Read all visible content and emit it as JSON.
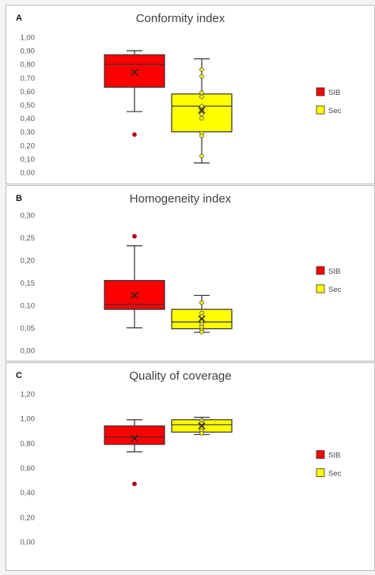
{
  "colors": {
    "SIB": "#ff0000",
    "Sec": "#ffff00",
    "outline": "#333333"
  },
  "chart_data": [
    {
      "type": "box",
      "panel_label": "A",
      "title": "Conformity index",
      "ylim": [
        0,
        1
      ],
      "yticks": [
        "0,00",
        "0,10",
        "0,20",
        "0,30",
        "0,40",
        "0,50",
        "0,60",
        "0,70",
        "0,80",
        "0,90",
        "1,00"
      ],
      "legend": [
        "SIB",
        "Sec"
      ],
      "legend_position": "right",
      "series": [
        {
          "name": "SIB",
          "min": 0.45,
          "q1": 0.63,
          "median": 0.8,
          "q3": 0.87,
          "max": 0.9,
          "mean": 0.74,
          "outliers": [
            0.28
          ],
          "points": []
        },
        {
          "name": "Sec",
          "min": 0.07,
          "q1": 0.3,
          "median": 0.49,
          "q3": 0.58,
          "max": 0.84,
          "mean": 0.46,
          "outliers": [],
          "points": [
            0.76,
            0.71,
            0.59,
            0.56,
            0.49,
            0.46,
            0.43,
            0.4,
            0.29,
            0.27,
            0.12
          ]
        }
      ]
    },
    {
      "type": "box",
      "panel_label": "B",
      "title": "Homogeneity index",
      "ylim": [
        0,
        0.3
      ],
      "yticks": [
        "0,00",
        "0,05",
        "0,10",
        "0,15",
        "0,20",
        "0,25",
        "0,30"
      ],
      "legend": [
        "SIB",
        "Sec"
      ],
      "legend_position": "right",
      "series": [
        {
          "name": "SIB",
          "min": 0.05,
          "q1": 0.091,
          "median": 0.102,
          "q3": 0.155,
          "max": 0.232,
          "mean": 0.122,
          "outliers": [
            0.253
          ],
          "points": []
        },
        {
          "name": "Sec",
          "min": 0.04,
          "q1": 0.048,
          "median": 0.063,
          "q3": 0.091,
          "max": 0.122,
          "mean": 0.07,
          "outliers": [],
          "points": [
            0.106,
            0.083,
            0.075,
            0.066,
            0.058,
            0.052,
            0.045,
            0.041
          ]
        }
      ]
    },
    {
      "type": "box",
      "panel_label": "C",
      "title": "Quality of coverage",
      "ylim": [
        0,
        1.2
      ],
      "yticks": [
        "0,00",
        "0,20",
        "0,40",
        "0,60",
        "0,80",
        "1,00",
        "1,20"
      ],
      "legend": [
        "SIB",
        "Sec"
      ],
      "legend_position": "right",
      "series": [
        {
          "name": "SIB",
          "min": 0.73,
          "q1": 0.79,
          "median": 0.85,
          "q3": 0.94,
          "max": 0.99,
          "mean": 0.84,
          "outliers": [
            0.47
          ],
          "points": []
        },
        {
          "name": "Sec",
          "min": 0.87,
          "q1": 0.89,
          "median": 0.95,
          "q3": 0.99,
          "max": 1.01,
          "mean": 0.94,
          "outliers": [],
          "points": [
            0.98,
            0.96,
            0.94,
            0.92,
            0.9,
            0.88
          ]
        }
      ]
    }
  ]
}
